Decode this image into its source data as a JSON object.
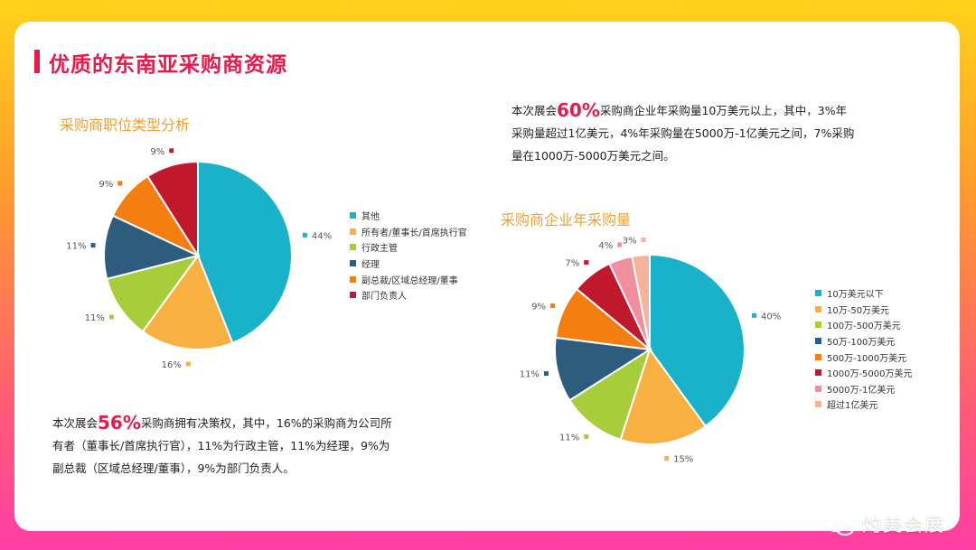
{
  "page": {
    "title": "优质的东南亚采购商资源"
  },
  "chart_data": [
    {
      "type": "pie",
      "title": "采购商职位类型分析",
      "legend_position": "right",
      "categories": [
        "其他",
        "所有者/董事长/首席执行官",
        "行政主管",
        "经理",
        "副总裁/区域总经理/董事",
        "部门负责人"
      ],
      "values": [
        44,
        16,
        11,
        11,
        9,
        9
      ],
      "labels": [
        "44%",
        "16%",
        "11%",
        "11%",
        "9%",
        "9%"
      ],
      "colors": [
        "#19b2c9",
        "#f8b040",
        "#a8cd3b",
        "#2d5c7e",
        "#f57e10",
        "#c0192e"
      ]
    },
    {
      "type": "pie",
      "title": "采购商企业年采购量",
      "legend_position": "right",
      "categories": [
        "10万美元以下",
        "10万-50万美元",
        "100万-500万美元",
        "50万-100万美元",
        "500万-1000万美元",
        "1000万-5000万美元",
        "5000万-1亿美元",
        "超过1亿美元"
      ],
      "values": [
        40,
        15,
        11,
        11,
        9,
        7,
        4,
        3
      ],
      "labels": [
        "40%",
        "15%",
        "11%",
        "11%",
        "9%",
        "7%",
        "4%",
        "3%"
      ],
      "colors": [
        "#19b2c9",
        "#f8b040",
        "#a8cd3b",
        "#2d5c7e",
        "#f57e10",
        "#c0192e",
        "#ef8e9c",
        "#f7b29a"
      ]
    }
  ],
  "text1": {
    "pre": "本次展会",
    "highlight": "60%",
    "l1": "采购商企业年采购量10万美元以上，其中，3%年",
    "l2": "采购量超过1亿美元，4%年采购量在5000万-1亿美元之间，7%采购",
    "l3": "量在1000万-5000万美元之间。"
  },
  "text2": {
    "pre": "本次展会",
    "highlight": "56%",
    "l1": "采购商拥有决策权，其中，16%的采购商为公司所",
    "l2": "有者（董事长/首席执行官），11%为行政主管，11%为经理，9%为",
    "l3": "副总裁（区域总经理/董事），9%为部门负责人。"
  },
  "watermark": {
    "text": "灼美会展",
    "icon": "wechat-icon"
  }
}
